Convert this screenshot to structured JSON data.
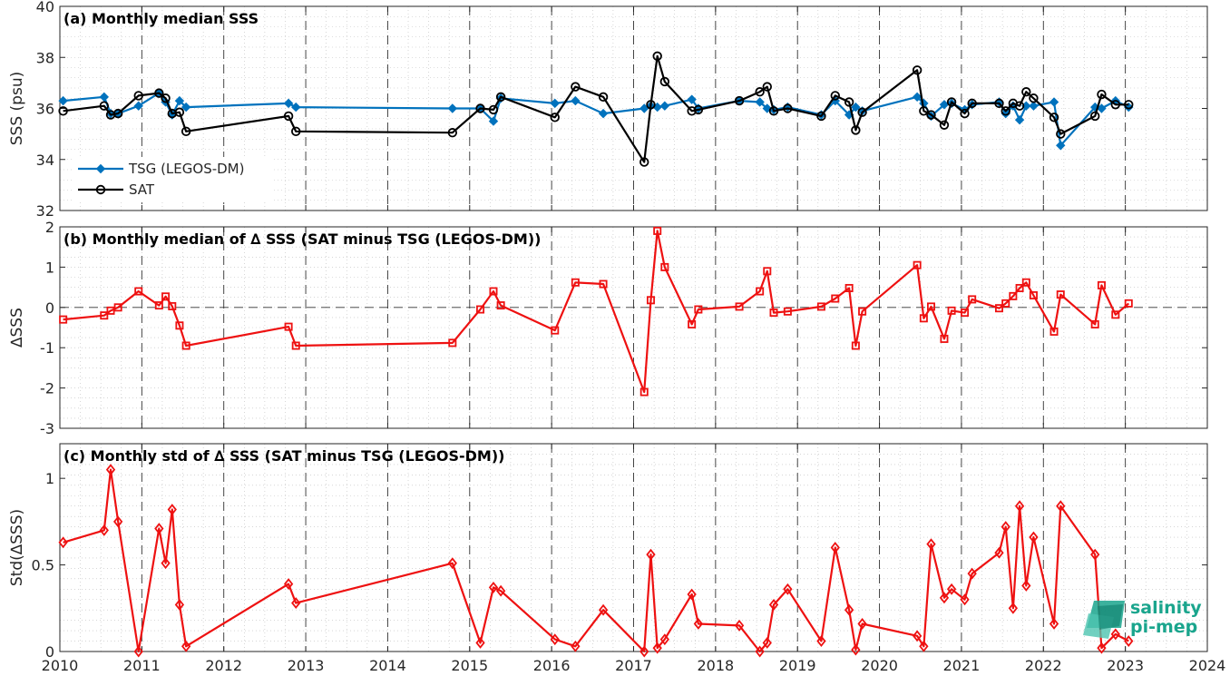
{
  "colors": {
    "tsg": "#0072bd",
    "sat": "#000000",
    "delta": "#ee1111",
    "axis": "#262626",
    "logo": "#1aa58d"
  },
  "logo": {
    "line1": "salinity",
    "line2": "pi-mep"
  },
  "chart_data": [
    {
      "type": "line",
      "title": "(a) Monthly median SSS",
      "ylabel": "SSS (psu)",
      "xlim": [
        2010,
        2024
      ],
      "ylim": [
        32,
        40
      ],
      "xticks": [
        2010,
        2011,
        2012,
        2013,
        2014,
        2015,
        2016,
        2017,
        2018,
        2019,
        2020,
        2021,
        2022,
        2023,
        2024
      ],
      "yticks": [
        32,
        34,
        36,
        38,
        40
      ],
      "year_gridlines": "dashed",
      "grid": "dotted minor",
      "legend_location": "lower-left",
      "series": [
        {
          "name": "TSG (LEGOS-DM)",
          "marker": "diamond",
          "x": [
            2010.04,
            2010.54,
            2010.62,
            2010.71,
            2010.96,
            2011.21,
            2011.29,
            2011.37,
            2011.46,
            2011.54,
            2012.79,
            2012.88,
            2014.79,
            2015.13,
            2015.29,
            2015.38,
            2016.04,
            2016.29,
            2016.63,
            2017.13,
            2017.21,
            2017.29,
            2017.38,
            2017.71,
            2017.79,
            2018.29,
            2018.54,
            2018.63,
            2018.71,
            2018.88,
            2019.29,
            2019.46,
            2019.63,
            2019.71,
            2019.79,
            2020.46,
            2020.54,
            2020.63,
            2020.79,
            2020.88,
            2021.04,
            2021.13,
            2021.46,
            2021.54,
            2021.63,
            2021.71,
            2021.79,
            2021.88,
            2022.13,
            2022.21,
            2022.63,
            2022.71,
            2022.88,
            2023.04
          ],
          "y": [
            36.3,
            36.45,
            35.8,
            35.8,
            36.1,
            36.6,
            36.25,
            35.75,
            36.3,
            36.05,
            36.2,
            36.05,
            36.0,
            36.0,
            35.5,
            36.4,
            36.2,
            36.3,
            35.8,
            36.0,
            36.1,
            36.05,
            36.1,
            36.35,
            36.0,
            36.3,
            36.25,
            36.0,
            35.95,
            36.05,
            35.75,
            36.3,
            35.75,
            36.05,
            35.9,
            36.45,
            36.2,
            35.7,
            36.15,
            36.2,
            35.95,
            36.15,
            36.25,
            35.8,
            36.1,
            35.55,
            36.1,
            36.1,
            36.25,
            34.55,
            36.05,
            36.0,
            36.3,
            36.05
          ]
        },
        {
          "name": "SAT",
          "marker": "circle",
          "x": [
            2010.04,
            2010.54,
            2010.62,
            2010.71,
            2010.96,
            2011.21,
            2011.29,
            2011.37,
            2011.46,
            2011.54,
            2012.79,
            2012.88,
            2014.79,
            2015.13,
            2015.29,
            2015.38,
            2016.04,
            2016.29,
            2016.63,
            2017.13,
            2017.21,
            2017.29,
            2017.38,
            2017.71,
            2017.79,
            2018.29,
            2018.54,
            2018.63,
            2018.71,
            2018.88,
            2019.29,
            2019.46,
            2019.63,
            2019.71,
            2019.79,
            2020.46,
            2020.54,
            2020.63,
            2020.79,
            2020.88,
            2021.04,
            2021.13,
            2021.46,
            2021.54,
            2021.63,
            2021.71,
            2021.79,
            2021.88,
            2022.13,
            2022.21,
            2022.63,
            2022.71,
            2022.88,
            2023.04
          ],
          "y": [
            35.9,
            36.1,
            35.75,
            35.8,
            36.5,
            36.6,
            36.4,
            35.8,
            35.85,
            35.1,
            35.7,
            35.1,
            35.05,
            36.0,
            35.95,
            36.45,
            35.65,
            36.85,
            36.45,
            33.9,
            36.15,
            38.05,
            37.05,
            35.9,
            35.95,
            36.3,
            36.65,
            36.85,
            35.9,
            36.0,
            35.7,
            36.5,
            36.25,
            35.15,
            35.85,
            37.5,
            35.9,
            35.75,
            35.35,
            36.25,
            35.8,
            36.2,
            36.2,
            35.9,
            36.2,
            36.1,
            36.65,
            36.4,
            35.65,
            35.0,
            35.7,
            36.55,
            36.15,
            36.15
          ]
        }
      ]
    },
    {
      "type": "line",
      "title": "(b) Monthly median of ∆ SSS (SAT minus TSG (LEGOS-DM))",
      "ylabel": "∆SSS",
      "xlim": [
        2010,
        2024
      ],
      "ylim": [
        -3,
        2
      ],
      "yticks": [
        -3,
        -2,
        -1,
        0,
        1,
        2
      ],
      "zero_line": "dashed",
      "series": [
        {
          "marker": "square",
          "x": [
            2010.04,
            2010.54,
            2010.62,
            2010.71,
            2010.96,
            2011.21,
            2011.29,
            2011.37,
            2011.46,
            2011.54,
            2012.79,
            2012.88,
            2014.79,
            2015.13,
            2015.29,
            2015.38,
            2016.04,
            2016.29,
            2016.63,
            2017.13,
            2017.21,
            2017.29,
            2017.38,
            2017.71,
            2017.79,
            2018.29,
            2018.54,
            2018.63,
            2018.71,
            2018.88,
            2019.29,
            2019.46,
            2019.63,
            2019.71,
            2019.79,
            2020.46,
            2020.54,
            2020.63,
            2020.79,
            2020.88,
            2021.04,
            2021.13,
            2021.46,
            2021.54,
            2021.63,
            2021.71,
            2021.79,
            2021.88,
            2022.13,
            2022.21,
            2022.63,
            2022.71,
            2022.88,
            2023.04
          ],
          "y": [
            -0.3,
            -0.2,
            -0.08,
            0.0,
            0.4,
            0.05,
            0.27,
            0.03,
            -0.45,
            -0.95,
            -0.48,
            -0.95,
            -0.88,
            -0.05,
            0.4,
            0.05,
            -0.57,
            0.62,
            0.58,
            -2.1,
            0.18,
            1.9,
            1.0,
            -0.42,
            -0.05,
            0.02,
            0.4,
            0.9,
            -0.13,
            -0.1,
            0.02,
            0.22,
            0.48,
            -0.95,
            -0.1,
            1.05,
            -0.27,
            0.02,
            -0.78,
            -0.08,
            -0.13,
            0.2,
            -0.02,
            0.1,
            0.28,
            0.48,
            0.62,
            0.3,
            -0.6,
            0.32,
            -0.42,
            0.55,
            -0.18,
            0.1
          ]
        }
      ]
    },
    {
      "type": "line",
      "title": "(c) Monthly std of ∆ SSS (SAT minus TSG (LEGOS-DM))",
      "ylabel": "Std(∆SSS)",
      "xlim": [
        2010,
        2024
      ],
      "ylim": [
        0,
        1.2
      ],
      "yticks": [
        0,
        0.5,
        1
      ],
      "series": [
        {
          "marker": "diamond-open",
          "x": [
            2010.04,
            2010.54,
            2010.62,
            2010.71,
            2010.96,
            2011.21,
            2011.29,
            2011.37,
            2011.46,
            2011.54,
            2012.79,
            2012.88,
            2014.79,
            2015.13,
            2015.29,
            2015.38,
            2016.04,
            2016.29,
            2016.63,
            2017.13,
            2017.21,
            2017.29,
            2017.38,
            2017.71,
            2017.79,
            2018.29,
            2018.54,
            2018.63,
            2018.71,
            2018.88,
            2019.29,
            2019.46,
            2019.63,
            2019.71,
            2019.79,
            2020.46,
            2020.54,
            2020.63,
            2020.79,
            2020.88,
            2021.04,
            2021.13,
            2021.46,
            2021.54,
            2021.63,
            2021.71,
            2021.79,
            2021.88,
            2022.13,
            2022.21,
            2022.63,
            2022.71,
            2022.88,
            2023.04
          ],
          "y": [
            0.63,
            0.7,
            1.05,
            0.75,
            0.0,
            0.71,
            0.51,
            0.82,
            0.27,
            0.03,
            0.39,
            0.28,
            0.51,
            0.05,
            0.37,
            0.35,
            0.07,
            0.03,
            0.24,
            0.0,
            0.56,
            0.02,
            0.07,
            0.33,
            0.16,
            0.15,
            0.0,
            0.05,
            0.27,
            0.36,
            0.06,
            0.6,
            0.24,
            0.01,
            0.16,
            0.09,
            0.03,
            0.62,
            0.31,
            0.36,
            0.3,
            0.45,
            0.57,
            0.72,
            0.25,
            0.84,
            0.38,
            0.66,
            0.16,
            0.84,
            0.56,
            0.02,
            0.1,
            0.06
          ]
        }
      ]
    }
  ]
}
